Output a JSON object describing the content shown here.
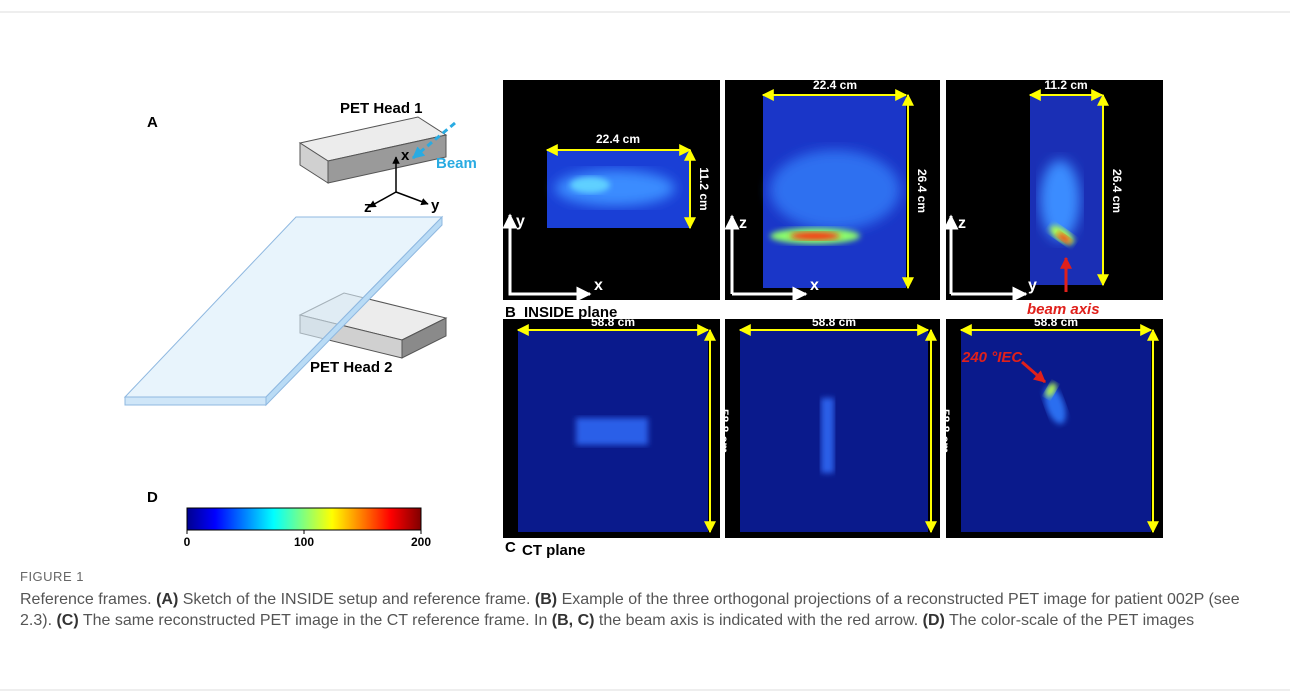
{
  "figure": {
    "panel_a": {
      "label": "A",
      "head1": "PET Head 1",
      "head2": "PET Head 2",
      "beam": "Beam",
      "axis_x": "x",
      "axis_y": "y",
      "axis_z": "z"
    },
    "panel_b": {
      "label": "B",
      "title": "INSIDE plane",
      "images": [
        {
          "width": "22.4 cm",
          "height": "11.2 cm",
          "axis_v": "y",
          "axis_h": "x"
        },
        {
          "width": "22.4 cm",
          "height": "26.4 cm",
          "axis_v": "z",
          "axis_h": "x"
        },
        {
          "width": "11.2 cm",
          "height": "26.4 cm",
          "axis_v": "z",
          "axis_h": "y"
        }
      ],
      "beam_axis": "beam axis"
    },
    "panel_c": {
      "label": "C",
      "title": "CT plane",
      "images": [
        {
          "width": "58.8 cm",
          "height": "58.8 cm"
        },
        {
          "width": "58.8 cm",
          "height": "58.8 cm"
        },
        {
          "width": "58.8 cm",
          "height": "58.8 cm"
        }
      ],
      "angle": "240 °IEC"
    },
    "panel_d": {
      "label": "D",
      "lim": [
        0,
        200
      ],
      "ticks": [
        0,
        100,
        200
      ]
    },
    "caption": {
      "label": "FIGURE 1",
      "segments": [
        "Reference frames. ",
        "(A)",
        " Sketch of the INSIDE setup and reference frame. ",
        "(B)",
        " Example of the three orthogonal projections of a reconstructed PET image for patient 002P (see 2.3). ",
        "(C)",
        " The same reconstructed PET image in the CT reference frame. In ",
        "(B, C)",
        " the beam axis is indicated with the red arrow. ",
        "(D)",
        " The color-scale of the PET images"
      ]
    }
  }
}
